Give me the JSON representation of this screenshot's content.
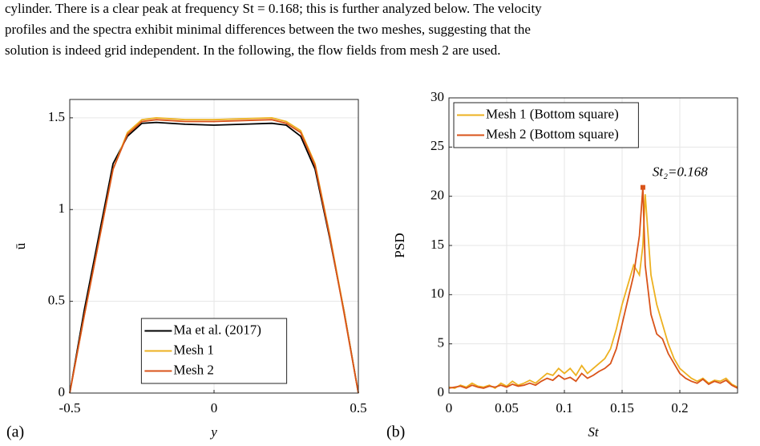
{
  "paragraph": {
    "lines": [
      "cylinder. There is a clear peak at frequency St = 0.168; this is further analyzed below. The velocity",
      "profiles and the spectra exhibit minimal differences between the two meshes, suggesting that the",
      "solution is indeed grid independent. In the following, the flow fields from mesh 2 are used."
    ]
  },
  "panels": [
    "(a)",
    "(b)"
  ],
  "chart_data": [
    {
      "type": "line",
      "xlabel": "y",
      "ylabel": "ū",
      "x": [
        -0.5,
        -0.45,
        -0.4,
        -0.35,
        -0.3,
        -0.25,
        -0.2,
        -0.1,
        0,
        0.1,
        0.2,
        0.25,
        0.3,
        0.35,
        0.4,
        0.45,
        0.5
      ],
      "series": [
        {
          "name": "Ma et al. (2017)",
          "color": "#000000",
          "values": [
            0,
            0.45,
            0.85,
            1.25,
            1.4,
            1.47,
            1.475,
            1.465,
            1.46,
            1.465,
            1.47,
            1.46,
            1.4,
            1.22,
            0.85,
            0.45,
            0
          ]
        },
        {
          "name": "Mesh 1",
          "color": "#edb120",
          "values": [
            0,
            0.42,
            0.82,
            1.22,
            1.42,
            1.49,
            1.5,
            1.49,
            1.49,
            1.495,
            1.5,
            1.48,
            1.43,
            1.25,
            0.87,
            0.45,
            0
          ]
        },
        {
          "name": "Mesh 2",
          "color": "#d95319",
          "values": [
            0,
            0.42,
            0.82,
            1.22,
            1.41,
            1.48,
            1.49,
            1.48,
            1.48,
            1.485,
            1.49,
            1.47,
            1.42,
            1.24,
            0.86,
            0.44,
            0
          ]
        }
      ],
      "xlim": [
        -0.5,
        0.5
      ],
      "xticks": [
        -0.5,
        0,
        0.5
      ],
      "ylim": [
        0,
        1.6
      ],
      "yticks": [
        0,
        0.5,
        1,
        1.5
      ],
      "grid": true,
      "legend": "lower center"
    },
    {
      "type": "line",
      "xlabel": "St",
      "ylabel": "PSD",
      "x": [
        0,
        0.005,
        0.01,
        0.015,
        0.02,
        0.025,
        0.03,
        0.035,
        0.04,
        0.045,
        0.05,
        0.055,
        0.06,
        0.065,
        0.07,
        0.075,
        0.08,
        0.085,
        0.09,
        0.095,
        0.1,
        0.105,
        0.11,
        0.115,
        0.12,
        0.125,
        0.13,
        0.135,
        0.14,
        0.145,
        0.15,
        0.155,
        0.16,
        0.165,
        0.168,
        0.17,
        0.175,
        0.18,
        0.185,
        0.19,
        0.195,
        0.2,
        0.205,
        0.21,
        0.215,
        0.22,
        0.225,
        0.23,
        0.235,
        0.24,
        0.245,
        0.25
      ],
      "series": [
        {
          "name": "Mesh 1 (Bottom square)",
          "color": "#edb120",
          "values": [
            0.6,
            0.5,
            0.8,
            0.6,
            1.0,
            0.7,
            0.6,
            0.8,
            0.5,
            1.0,
            0.7,
            1.2,
            0.8,
            1.0,
            1.3,
            1.0,
            1.5,
            2.0,
            1.8,
            2.5,
            2.0,
            2.5,
            1.8,
            2.8,
            2.0,
            2.5,
            3.0,
            3.5,
            4.5,
            6.5,
            9.0,
            11.0,
            13.0,
            12.0,
            15.0,
            20.2,
            12.0,
            9.0,
            7.0,
            5.0,
            3.5,
            2.5,
            2.0,
            1.5,
            1.2,
            1.5,
            1.0,
            1.3,
            1.2,
            1.5,
            0.9,
            0.6
          ]
        },
        {
          "name": "Mesh 2 (Bottom square)",
          "color": "#d95319",
          "values": [
            0.5,
            0.6,
            0.7,
            0.5,
            0.8,
            0.6,
            0.5,
            0.7,
            0.6,
            0.8,
            0.6,
            0.9,
            0.7,
            0.8,
            1.0,
            0.8,
            1.2,
            1.5,
            1.3,
            1.8,
            1.4,
            1.6,
            1.2,
            2.0,
            1.5,
            1.8,
            2.2,
            2.5,
            3.0,
            4.5,
            7.0,
            9.5,
            12.0,
            16.0,
            20.9,
            13.0,
            8.0,
            6.0,
            5.5,
            4.0,
            3.0,
            2.0,
            1.5,
            1.2,
            1.0,
            1.4,
            0.9,
            1.2,
            1.0,
            1.3,
            0.8,
            0.5
          ]
        }
      ],
      "annotation": {
        "text": "St₂=0.168",
        "x": 0.168,
        "y": 20.9
      },
      "xlim": [
        0,
        0.25
      ],
      "xticks": [
        0,
        0.05,
        0.1,
        0.15,
        0.2
      ],
      "ylim": [
        0,
        30
      ],
      "yticks": [
        0,
        5,
        10,
        15,
        20,
        25,
        30
      ],
      "grid": true,
      "legend": "upper left"
    }
  ]
}
